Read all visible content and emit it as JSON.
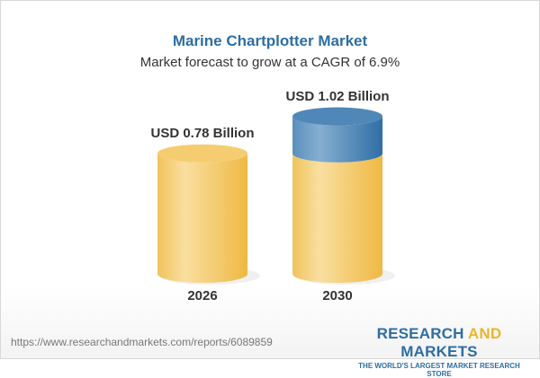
{
  "title": "Marine Chartplotter Market",
  "subtitle": "Market forecast to grow at a CAGR of 6.9%",
  "chart_data": {
    "type": "bar",
    "categories": [
      "2026",
      "2030"
    ],
    "values": [
      0.78,
      1.02
    ],
    "data_labels": [
      "USD 0.78 Billion",
      "USD 1.02 Billion"
    ],
    "unit": "USD Billion",
    "colors": {
      "base": "#f2c255",
      "growth": "#3f7eb3"
    }
  },
  "footer": {
    "url": "https://www.researchandmarkets.com/reports/6089859",
    "logo_part1": "RESEARCH ",
    "logo_part2": "AND",
    "logo_part3": " MARKETS",
    "tagline": "THE WORLD'S LARGEST MARKET RESEARCH STORE"
  }
}
